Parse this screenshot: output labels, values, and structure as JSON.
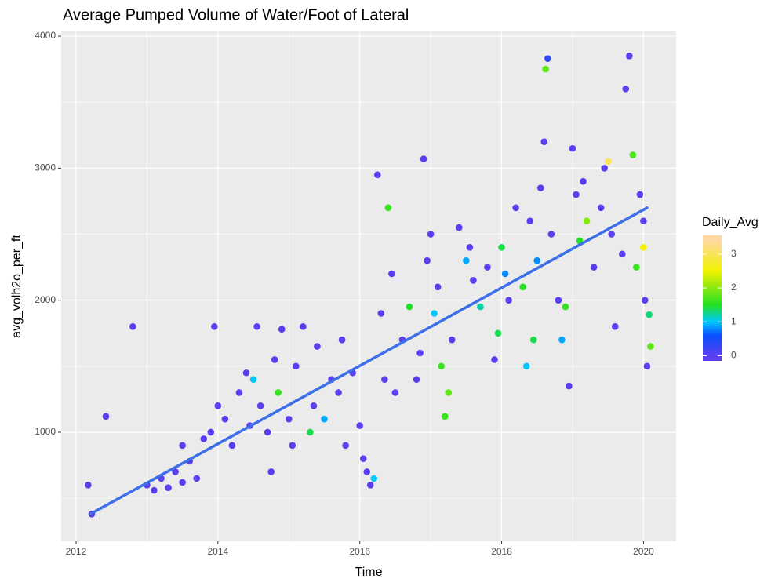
{
  "chart_data": {
    "type": "scatter",
    "title": "Average Pumped Volume of Water/Foot of Lateral",
    "x_label": "Time",
    "y_label": "avg_volh2o_per_ft",
    "xlim": [
      2011.79,
      2020.46
    ],
    "ylim": [
      174,
      4036
    ],
    "xticks": [
      2012,
      2014,
      2016,
      2018,
      2020
    ],
    "yticks": [
      1000,
      2000,
      3000,
      4000
    ],
    "grid": true,
    "series": [
      {
        "x": [
          2012.17,
          2012.22,
          2012.42,
          2012.8,
          2013.0,
          2013.1,
          2013.2,
          2013.3,
          2013.4,
          2013.5,
          2013.5,
          2013.6,
          2013.7,
          2013.8,
          2013.9,
          2013.95,
          2014.0,
          2014.1,
          2014.2,
          2014.3,
          2014.4,
          2014.45,
          2014.5,
          2014.55,
          2014.6,
          2014.7,
          2014.75,
          2014.8,
          2014.85,
          2014.9,
          2015.0,
          2015.05,
          2015.1,
          2015.2,
          2015.3,
          2015.35,
          2015.4,
          2015.5,
          2015.6,
          2015.7,
          2015.75,
          2015.8,
          2015.9,
          2016.0,
          2016.05,
          2016.1,
          2016.15,
          2016.2,
          2016.25,
          2016.3,
          2016.35,
          2016.4,
          2016.45,
          2016.5,
          2016.6,
          2016.7,
          2016.8,
          2016.85,
          2016.9,
          2016.95,
          2017.0,
          2017.05,
          2017.1,
          2017.15,
          2017.2,
          2017.25,
          2017.3,
          2017.4,
          2017.5,
          2017.55,
          2017.6,
          2017.7,
          2017.8,
          2017.9,
          2017.95,
          2018.0,
          2018.05,
          2018.1,
          2018.2,
          2018.3,
          2018.35,
          2018.4,
          2018.45,
          2018.5,
          2018.55,
          2018.6,
          2018.62,
          2018.65,
          2018.7,
          2018.8,
          2018.85,
          2018.9,
          2018.95,
          2019.0,
          2019.05,
          2019.1,
          2019.15,
          2019.2,
          2019.3,
          2019.4,
          2019.45,
          2019.5,
          2019.55,
          2019.6,
          2019.7,
          2019.75,
          2019.8,
          2019.85,
          2019.9,
          2019.95,
          2020.0,
          2020.02,
          2020.05,
          2020.08,
          2020.1,
          2020.0
        ],
        "values": [
          600,
          380,
          1120,
          1800,
          600,
          560,
          650,
          580,
          700,
          900,
          620,
          780,
          650,
          950,
          1000,
          1800,
          1200,
          1100,
          900,
          1300,
          1450,
          1050,
          1400,
          1800,
          1200,
          1000,
          700,
          1550,
          1300,
          1780,
          1100,
          900,
          1500,
          1800,
          1000,
          1200,
          1650,
          1100,
          1400,
          1300,
          1700,
          900,
          1450,
          1050,
          800,
          700,
          600,
          650,
          2950,
          1900,
          1400,
          2700,
          2200,
          1300,
          1700,
          1950,
          1400,
          1600,
          3070,
          2300,
          2500,
          1900,
          2100,
          1500,
          1120,
          1300,
          1700,
          2550,
          2300,
          2400,
          2150,
          1950,
          2250,
          1550,
          1750,
          2400,
          2200,
          2000,
          2700,
          2100,
          1500,
          2600,
          1700,
          2300,
          2850,
          3200,
          3750,
          3830,
          2500,
          2000,
          1700,
          1950,
          1350,
          3150,
          2800,
          2450,
          2900,
          2600,
          2250,
          2700,
          3000,
          3050,
          2500,
          1800,
          2350,
          3600,
          3850,
          3100,
          2250,
          2800,
          2400,
          2000,
          1500,
          1890,
          1650,
          2600
        ],
        "color_values": [
          0,
          0,
          0,
          0,
          0,
          0,
          0,
          0,
          0,
          0,
          0,
          0,
          0,
          0,
          0,
          0,
          0,
          0,
          0,
          0,
          0,
          0,
          1,
          0,
          0,
          0,
          0,
          0,
          1.6,
          0,
          0,
          0,
          0,
          0,
          1.4,
          0,
          0,
          0.9,
          0,
          0,
          0,
          0,
          0,
          0,
          0,
          0,
          0,
          1,
          0,
          0,
          0,
          1.6,
          0,
          0,
          0,
          1.5,
          0,
          0,
          0,
          0,
          0,
          1,
          0,
          1.6,
          1.6,
          1.8,
          0,
          0,
          0.9,
          0,
          0,
          1.2,
          0,
          0,
          1.4,
          1.4,
          0.8,
          0,
          0,
          1.5,
          1,
          0,
          1.4,
          0.8,
          0,
          0,
          1.8,
          0.3,
          0,
          0,
          0.9,
          1.6,
          0,
          0,
          0,
          1.5,
          0,
          2,
          0,
          0,
          0,
          3,
          0,
          0,
          0,
          0,
          0,
          1.7,
          1.6,
          0,
          2.5,
          0,
          0,
          1.3,
          1.8,
          0
        ]
      }
    ],
    "trend": {
      "x": [
        2012.2,
        2020.05
      ],
      "values": [
        380,
        2700
      ],
      "color": "#3d6fe8"
    },
    "colorbar": {
      "title": "Daily_Avg",
      "lim": [
        -0.15,
        3.55
      ],
      "ticks": [
        0,
        1,
        2,
        3
      ],
      "stops": [
        {
          "value": 0,
          "color": "#5a3ff0"
        },
        {
          "value": 0.6,
          "color": "#0a50ff"
        },
        {
          "value": 1,
          "color": "#00c8ff"
        },
        {
          "value": 1.5,
          "color": "#22e022"
        },
        {
          "value": 2.5,
          "color": "#f2f200"
        },
        {
          "value": 3.4,
          "color": "#ffd8a0"
        }
      ]
    }
  }
}
